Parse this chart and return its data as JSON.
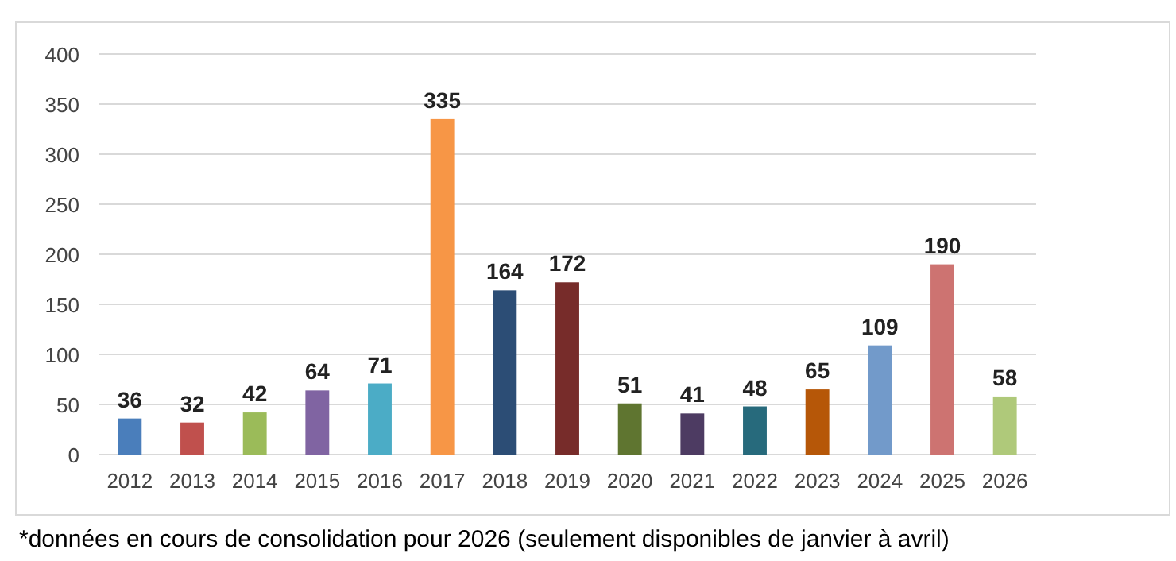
{
  "chart_data": {
    "type": "bar",
    "categories": [
      "2012",
      "2013",
      "2014",
      "2015",
      "2016",
      "2017",
      "2018",
      "2019",
      "2020",
      "2021",
      "2022",
      "2023",
      "2024",
      "2025",
      "2026"
    ],
    "values": [
      36,
      32,
      42,
      64,
      71,
      335,
      164,
      172,
      51,
      41,
      48,
      65,
      109,
      190,
      58
    ],
    "colors": [
      "#4a7ebb",
      "#c0504d",
      "#9bbb59",
      "#8064a2",
      "#4bacc6",
      "#f79646",
      "#2c4d75",
      "#772c2a",
      "#5f7530",
      "#4d3b62",
      "#276a7c",
      "#b65708",
      "#729aca",
      "#cd7371",
      "#afc97a"
    ],
    "ylim": [
      0,
      400
    ],
    "yticks": [
      0,
      50,
      100,
      150,
      200,
      250,
      300,
      350,
      400
    ],
    "grid": "y",
    "data_labels": true,
    "annotations": [
      "*données en cours de consolidation pour 2026 (seulement disponibles de janvier à avril)"
    ]
  }
}
